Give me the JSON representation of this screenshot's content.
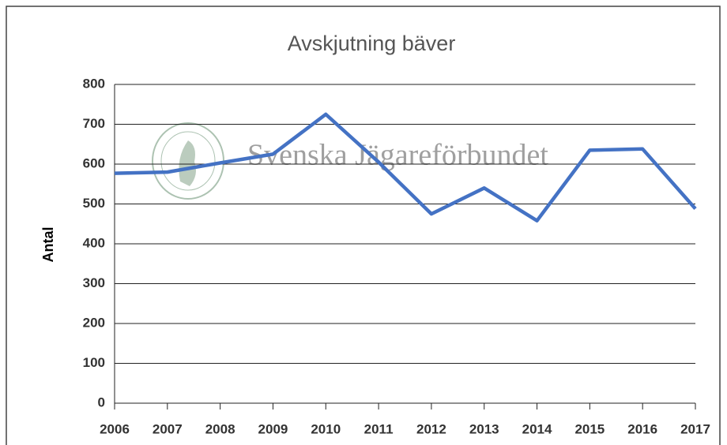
{
  "chart_data": {
    "type": "line",
    "title": "Avskjutning bäver",
    "y_label": "Antal",
    "watermark": "Svenska Jägareförbundet",
    "x": [
      2006,
      2007,
      2008,
      2009,
      2010,
      2011,
      2012,
      2013,
      2014,
      2015,
      2016,
      2017
    ],
    "series": [
      {
        "name": "Avskjutning",
        "color": "#4472c4",
        "values": [
          577,
          580,
          603,
          625,
          725,
          605,
          475,
          540,
          458,
          635,
          638,
          488
        ]
      }
    ],
    "xlim": [
      2006,
      2017
    ],
    "xticks": [
      2006,
      2007,
      2008,
      2009,
      2010,
      2011,
      2012,
      2013,
      2014,
      2015,
      2016,
      2017
    ],
    "ylim": [
      0,
      800
    ],
    "yticks": [
      0,
      100,
      200,
      300,
      400,
      500,
      600,
      700,
      800
    ],
    "grid": true
  }
}
